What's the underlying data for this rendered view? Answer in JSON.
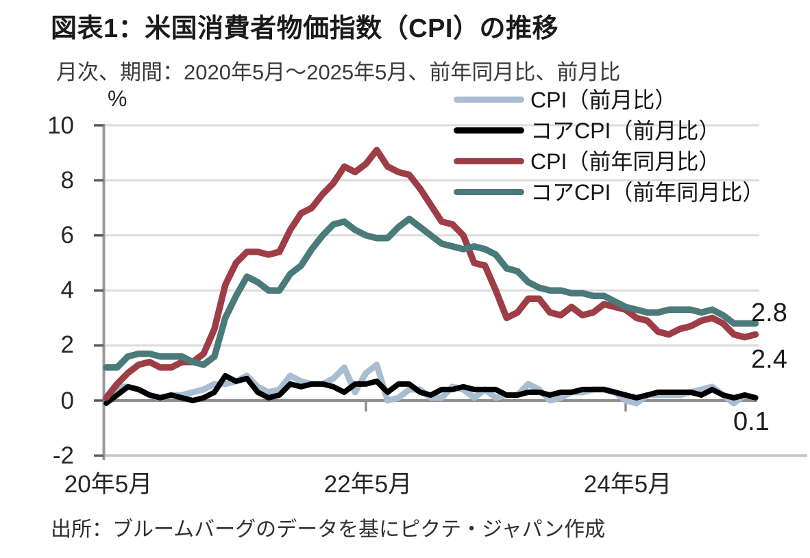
{
  "page": {
    "title": "図表1：米国消費者物価指数（CPI）の推移",
    "subtitle": "月次、期間：2020年5月～2025年5月、前年同月比、前月比",
    "source": "出所：ブルームバーグのデータを基にピクテ・ジャパン作成"
  },
  "legend": {
    "items": [
      {
        "label": "CPI（前月比）",
        "color": "#a9bdd2"
      },
      {
        "label": "コアCPI（前月比）",
        "color": "#000000"
      },
      {
        "label": "CPI（前年同月比）",
        "color": "#9e3d46"
      },
      {
        "label": "コアCPI（前年同月比）",
        "color": "#4a7a7a"
      }
    ]
  },
  "chart_data": {
    "type": "line",
    "title": "図表1：米国消費者物価指数（CPI）の推移",
    "subtitle": "月次、期間：2020年5月～2025年5月、前年同月比、前月比",
    "unit": "%",
    "frequency": "monthly",
    "x_start": "2020-05",
    "x_end": "2025-05",
    "x_axis": {
      "tick_labels": [
        "20年5月",
        "22年5月",
        "24年5月"
      ],
      "tick_month_index": [
        0,
        24,
        48
      ]
    },
    "y_axis": {
      "ticks": [
        10,
        8,
        6,
        4,
        2,
        0,
        -2
      ],
      "tick_labels": [
        "10",
        "8",
        "6",
        "4",
        "2",
        "0",
        "-2"
      ],
      "ylim": [
        -2,
        10
      ],
      "grid": true
    },
    "series": [
      {
        "name": "CPI（前月比）",
        "color": "#a9bdd2",
        "values": [
          -0.1,
          0.5,
          0.5,
          0.4,
          0.2,
          0.1,
          0.2,
          0.2,
          0.3,
          0.4,
          0.6,
          0.6,
          0.7,
          0.9,
          0.5,
          0.3,
          0.4,
          0.9,
          0.7,
          0.6,
          0.6,
          0.8,
          1.2,
          0.3,
          1.0,
          1.3,
          0.0,
          0.1,
          0.4,
          0.4,
          0.1,
          0.1,
          0.5,
          0.4,
          0.1,
          0.4,
          0.1,
          0.2,
          0.2,
          0.6,
          0.4,
          0.0,
          0.1,
          0.3,
          0.3,
          0.4,
          0.4,
          0.3,
          0.0,
          -0.1,
          0.2,
          0.2,
          0.2,
          0.2,
          0.3,
          0.4,
          0.5,
          0.2,
          -0.1,
          0.2,
          0.1
        ]
      },
      {
        "name": "コアCPI（前月比）",
        "color": "#000000",
        "values": [
          -0.1,
          0.2,
          0.5,
          0.4,
          0.2,
          0.1,
          0.2,
          0.1,
          0.0,
          0.1,
          0.3,
          0.9,
          0.7,
          0.8,
          0.3,
          0.1,
          0.2,
          0.6,
          0.5,
          0.6,
          0.6,
          0.5,
          0.3,
          0.6,
          0.6,
          0.7,
          0.3,
          0.6,
          0.6,
          0.3,
          0.2,
          0.4,
          0.4,
          0.5,
          0.4,
          0.4,
          0.4,
          0.2,
          0.2,
          0.3,
          0.3,
          0.2,
          0.3,
          0.3,
          0.4,
          0.4,
          0.4,
          0.3,
          0.2,
          0.1,
          0.2,
          0.3,
          0.3,
          0.3,
          0.3,
          0.2,
          0.4,
          0.2,
          0.1,
          0.2,
          0.1
        ]
      },
      {
        "name": "CPI（前年同月比）",
        "color": "#9e3d46",
        "values": [
          0.1,
          0.6,
          1.0,
          1.3,
          1.4,
          1.2,
          1.2,
          1.4,
          1.4,
          1.7,
          2.6,
          4.2,
          5.0,
          5.4,
          5.4,
          5.3,
          5.4,
          6.2,
          6.8,
          7.0,
          7.5,
          7.9,
          8.5,
          8.3,
          8.6,
          9.1,
          8.5,
          8.3,
          8.2,
          7.7,
          7.1,
          6.5,
          6.4,
          6.0,
          5.0,
          4.9,
          4.0,
          3.0,
          3.2,
          3.7,
          3.7,
          3.2,
          3.1,
          3.4,
          3.1,
          3.2,
          3.5,
          3.4,
          3.3,
          3.0,
          2.9,
          2.5,
          2.4,
          2.6,
          2.7,
          2.9,
          3.0,
          2.8,
          2.4,
          2.3,
          2.4
        ]
      },
      {
        "name": "コアCPI（前年同月比）",
        "color": "#4a7a7a",
        "values": [
          1.2,
          1.2,
          1.6,
          1.7,
          1.7,
          1.6,
          1.6,
          1.6,
          1.4,
          1.3,
          1.6,
          3.0,
          3.8,
          4.5,
          4.3,
          4.0,
          4.0,
          4.6,
          4.9,
          5.5,
          6.0,
          6.4,
          6.5,
          6.2,
          6.0,
          5.9,
          5.9,
          6.3,
          6.6,
          6.3,
          6.0,
          5.7,
          5.6,
          5.5,
          5.6,
          5.5,
          5.3,
          4.8,
          4.7,
          4.3,
          4.1,
          4.0,
          4.0,
          3.9,
          3.9,
          3.8,
          3.8,
          3.6,
          3.4,
          3.3,
          3.2,
          3.2,
          3.3,
          3.3,
          3.3,
          3.2,
          3.3,
          3.1,
          2.8,
          2.8,
          2.8
        ]
      }
    ],
    "end_labels": [
      {
        "text": "2.8",
        "series": "コアCPI（前年同月比）",
        "value": 2.8
      },
      {
        "text": "2.4",
        "series": "CPI（前年同月比）",
        "value": 2.4
      },
      {
        "text": "0.1",
        "series": "CPI（前月比）・コアCPI（前月比）",
        "value": 0.1
      }
    ],
    "legend_position": "top-right"
  }
}
